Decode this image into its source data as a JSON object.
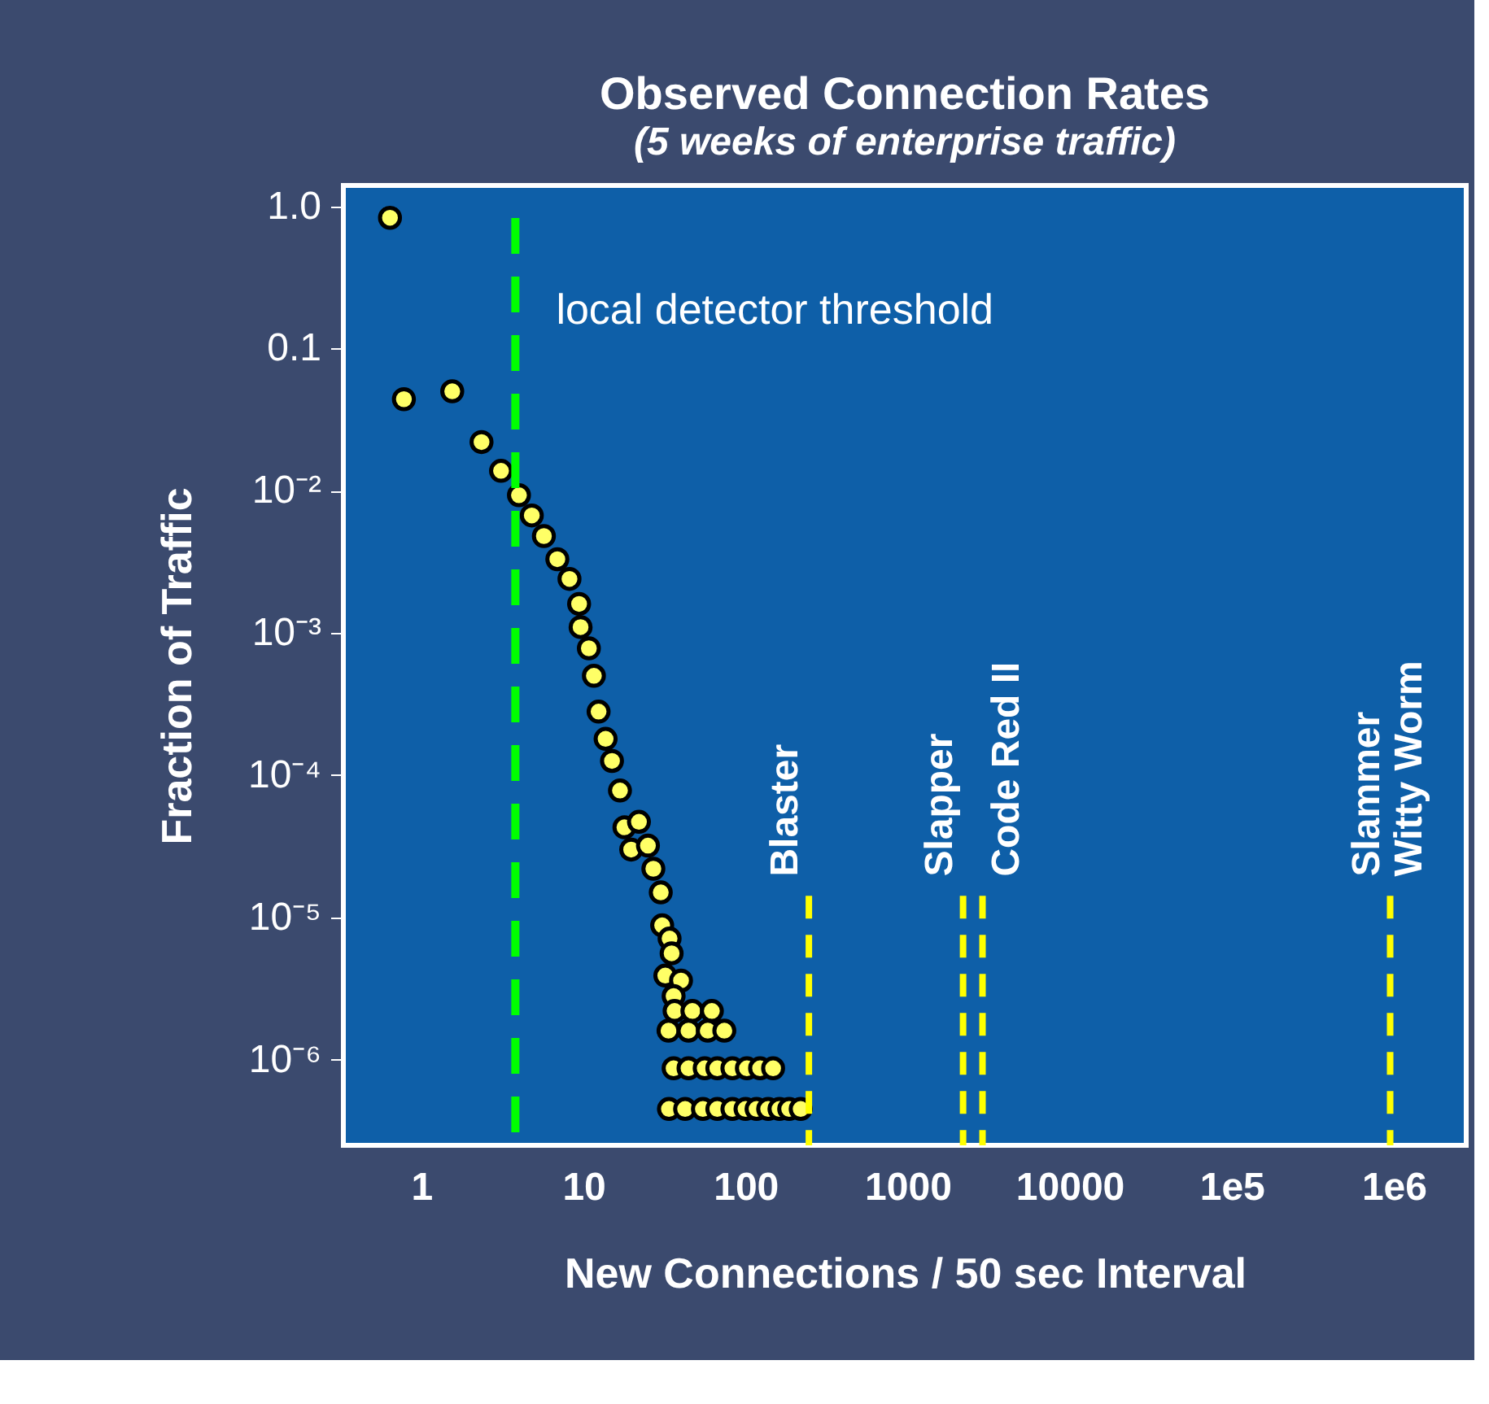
{
  "chart_data": {
    "type": "scatter",
    "title": "Observed Connection Rates",
    "subtitle": "(5 weeks of enterprise traffic)",
    "xlabel": "New Connections / 50 sec Interval",
    "ylabel": "Fraction of Traffic",
    "log": "xy",
    "grid": false,
    "marker": "circle",
    "xlim": [
      0.33,
      2800000
    ],
    "ylim": [
      2.5e-07,
      1.4
    ],
    "xticks": [
      1,
      10,
      100,
      1000,
      10000,
      {
        "value": 100000,
        "label": "1e5"
      },
      {
        "value": 1000000,
        "label": "1e6"
      }
    ],
    "yticks": [
      {
        "value": 1,
        "label": "1.0"
      },
      0.1,
      {
        "value": 0.01,
        "label": "10⁻²"
      },
      {
        "value": 0.001,
        "label": "10⁻³"
      },
      {
        "value": 0.0001,
        "label": "10⁻⁴"
      },
      {
        "value": 1e-05,
        "label": "10⁻⁵"
      },
      {
        "value": 1e-06,
        "label": "10⁻⁶"
      }
    ],
    "series": [
      {
        "color": "#ffff66",
        "x": [
          0.64,
          0.78,
          1.55,
          2.35,
          3.1,
          4.0,
          4.8,
          5.7,
          6.9,
          8.2,
          9.4,
          9.6,
          10.8,
          11.6,
          12.4,
          13.7,
          15,
          16.8,
          17.9,
          22,
          19.7,
          25,
          27,
          30,
          30.6,
          34,
          35,
          32,
          40,
          36,
          36.5,
          47,
          62,
          33.5,
          44.5,
          58.5,
          74,
          36,
          44.5,
          56,
          67,
          83,
          102,
          123,
          148,
          33.7,
          42.4,
          54.6,
          67,
          83,
          100,
          117,
          138,
          162,
          186,
          219
        ],
        "values": [
          0.83,
          0.044,
          0.05,
          0.022,
          0.0138,
          0.0093,
          0.0067,
          0.0048,
          0.0033,
          0.0024,
          0.0016,
          0.0011,
          0.00078,
          0.0005,
          0.00028,
          0.00018,
          0.000126,
          7.8e-05,
          4.3e-05,
          4.7e-05,
          3e-05,
          3.2e-05,
          2.2e-05,
          1.5e-05,
          8.8e-06,
          7.1e-06,
          5.6e-06,
          3.9e-06,
          3.6e-06,
          2.8e-06,
          2.2e-06,
          2.2e-06,
          2.2e-06,
          1.6e-06,
          1.6e-06,
          1.6e-06,
          1.6e-06,
          8.7e-07,
          8.7e-07,
          8.7e-07,
          8.7e-07,
          8.7e-07,
          8.7e-07,
          8.7e-07,
          8.7e-07,
          4.5e-07,
          4.5e-07,
          4.5e-07,
          4.5e-07,
          4.5e-07,
          4.5e-07,
          4.5e-07,
          4.5e-07,
          4.5e-07,
          4.5e-07,
          4.5e-07
        ]
      }
    ],
    "ref_lines": [
      {
        "axis": "x",
        "value": 3.8,
        "label": "local detector threshold",
        "color": "#00ff00",
        "line_style": "dashed"
      },
      {
        "axis": "x",
        "value": 246,
        "label": "Blaster",
        "color": "#ffff00",
        "line_style": "dashed"
      },
      {
        "axis": "x",
        "value": 2200,
        "label": "Slapper",
        "color": "#ffff00",
        "line_style": "dashed"
      },
      {
        "axis": "x",
        "value": 2900,
        "label": "Code Red II",
        "color": "#ffff00",
        "line_style": "dashed"
      },
      {
        "axis": "x",
        "value": 950000,
        "label": "Slammer\nWitty Worm",
        "color": "#ffff00",
        "line_style": "dashed"
      }
    ]
  }
}
